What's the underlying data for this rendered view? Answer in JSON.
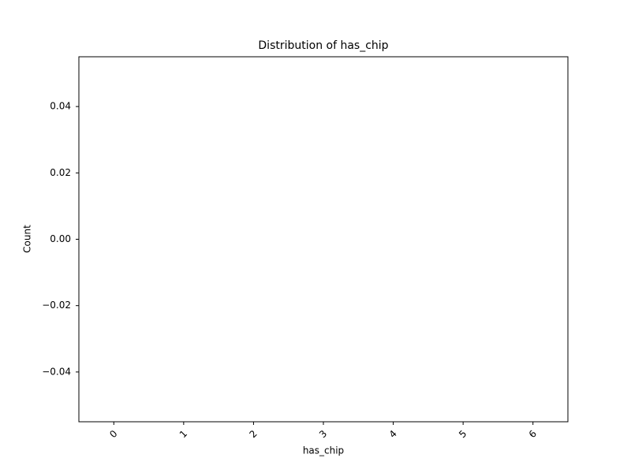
{
  "chart_data": {
    "type": "bar",
    "title": "Distribution of has_chip",
    "xlabel": "has_chip",
    "ylabel": "Count",
    "categories": [
      "0",
      "1",
      "2",
      "3",
      "4",
      "5",
      "6"
    ],
    "values": [
      0,
      0,
      0,
      0,
      0,
      0,
      0
    ],
    "color": "#1f77b4",
    "ylim": [
      -0.055,
      0.055
    ],
    "yticks": [
      {
        "value": -0.04,
        "label": "−0.04"
      },
      {
        "value": -0.02,
        "label": "−0.02"
      },
      {
        "value": 0,
        "label": "0.00"
      },
      0.02,
      0.04
    ],
    "grid": false
  }
}
